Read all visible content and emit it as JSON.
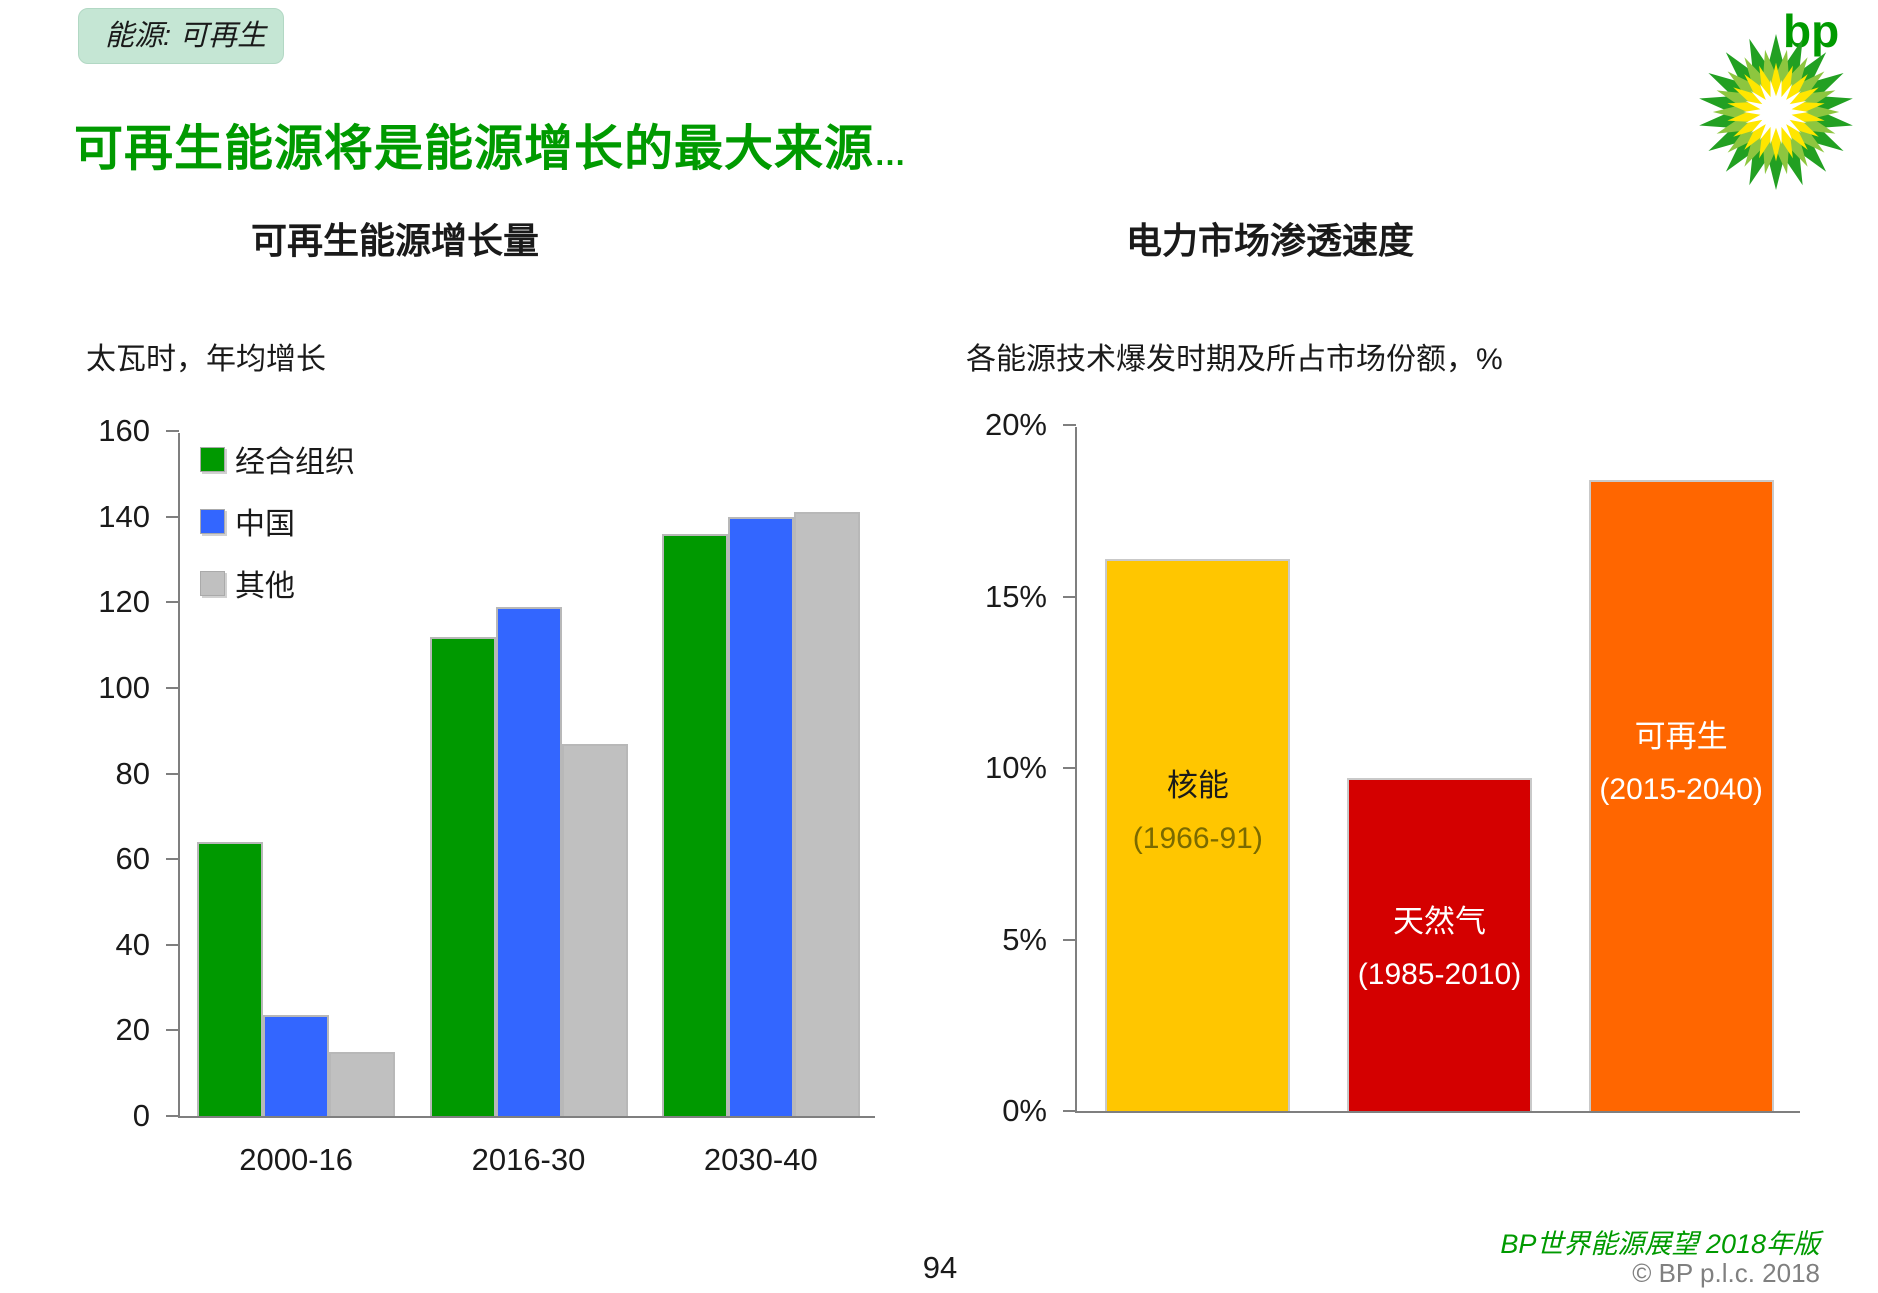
{
  "header": {
    "badge": "能源: 可再生",
    "title": "可再生能源将是能源增长的最大来源",
    "title_suffix": "…",
    "logo_text": "bp"
  },
  "footer": {
    "brand_line": "BP世界能源展望 2018年版",
    "copyright": "© BP p.l.c. 2018",
    "page_number": "94"
  },
  "colors": {
    "title_green": "#009a00",
    "badge_bg": "#c5e6d4",
    "axis_gray": "#7f7f7f",
    "bar_border": "#b8b8b8",
    "footer_green": "#009a00",
    "copyright_gray": "#808080"
  },
  "chart_data": [
    {
      "type": "bar",
      "title": "可再生能源增长量",
      "ylabel": "太瓦时，年均增长",
      "xlabel": "",
      "categories": [
        "2000-16",
        "2016-30",
        "2030-40"
      ],
      "series": [
        {
          "key": "oecd",
          "name": "经合组织",
          "color": "#009900",
          "values": [
            64,
            112,
            136
          ]
        },
        {
          "key": "china",
          "name": "中国",
          "color": "#3366ff",
          "values": [
            23.5,
            119,
            140
          ]
        },
        {
          "key": "other",
          "name": "其他",
          "color": "#c0c0c0",
          "values": [
            15,
            87,
            141
          ]
        }
      ],
      "ylim": [
        0,
        160
      ],
      "yticks": [
        0,
        20,
        40,
        60,
        80,
        100,
        120,
        140,
        160
      ],
      "grid": false,
      "legend_position": "inside-top-left"
    },
    {
      "type": "bar",
      "title": "电力市场渗透速度",
      "ylabel": "各能源技术爆发时期及所占市场份额，%",
      "xlabel": "",
      "bars": [
        {
          "key": "nuclear",
          "label": "核能",
          "period": "(1966-91)",
          "value": 16.1,
          "color": "#ffc600",
          "label_color": "#1a1a1a",
          "period_color": "#7a6a00"
        },
        {
          "key": "gas",
          "label": "天然气",
          "period": "(1985-2010)",
          "value": 9.7,
          "color": "#d40000",
          "label_color": "#ffffff",
          "period_color": "#ffffff"
        },
        {
          "key": "renewables",
          "label": "可再生",
          "period": "(2015-2040)",
          "value": 18.4,
          "color": "#ff6600",
          "label_color": "#ffffff",
          "period_color": "#ffffff"
        }
      ],
      "ylim": [
        0,
        20
      ],
      "yticks": [
        "0%",
        "5%",
        "10%",
        "15%",
        "20%"
      ],
      "grid": false
    }
  ]
}
